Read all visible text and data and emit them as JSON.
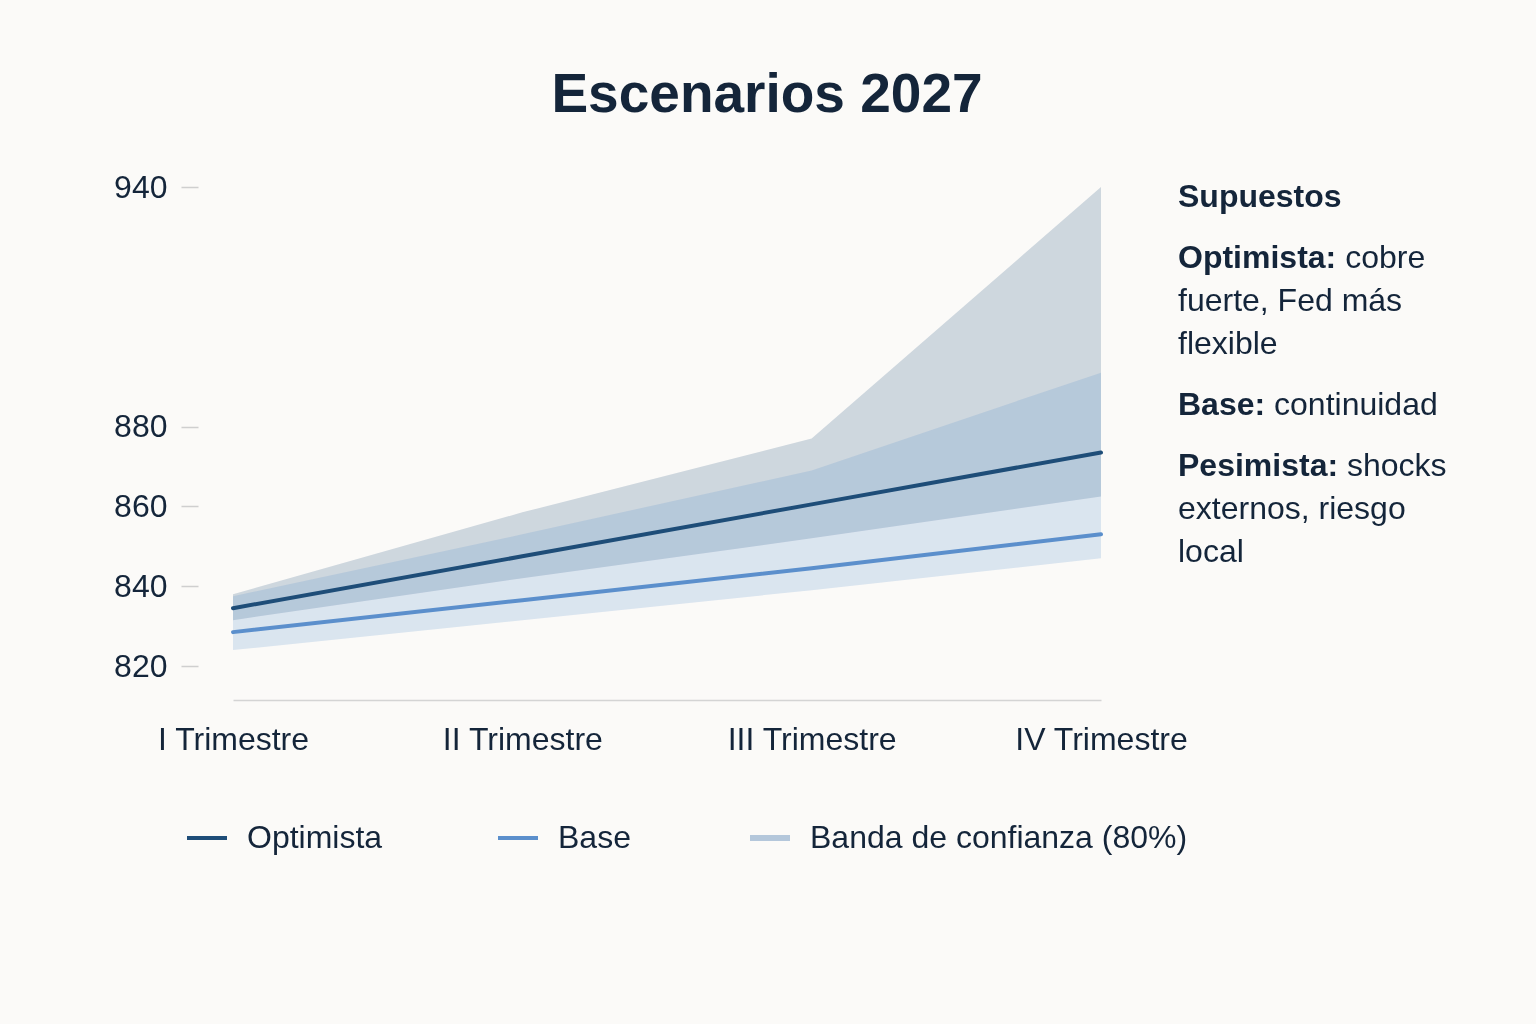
{
  "chart_data": {
    "type": "line",
    "title": "Escenarios 2027",
    "categories": [
      "I Trimestre",
      "II Trimestre",
      "III Trimestre",
      "IV Trimestre"
    ],
    "series": [
      {
        "name": "Optimista",
        "color": "#1e4d78",
        "values": [
          834.5,
          847.5,
          860.5,
          873.5
        ],
        "lower": [
          831.5,
          842,
          852,
          862.5
        ],
        "upper": [
          838,
          858.5,
          877,
          940
        ]
      },
      {
        "name": "Base",
        "color": "#5b8fcc",
        "values": [
          828.5,
          836.5,
          844.5,
          853
        ],
        "lower": [
          824,
          831.5,
          839,
          847
        ],
        "upper": [
          837.5,
          853,
          869,
          893.5
        ]
      },
      {
        "name": "Banda de confianza (80%)",
        "type": "area",
        "color": "#b4c7db",
        "values": [
          null,
          null,
          null,
          null
        ]
      }
    ],
    "ylim": [
      811.5,
      940
    ],
    "yticks": [
      820,
      840,
      860,
      880,
      940
    ],
    "legend": "bottom",
    "annotations": [
      "Supuestos",
      "Optimista: cobre fuerte, Fed más flexible",
      "Base: continuidad",
      "Pesimista: shocks externos, riesgo local"
    ]
  }
}
